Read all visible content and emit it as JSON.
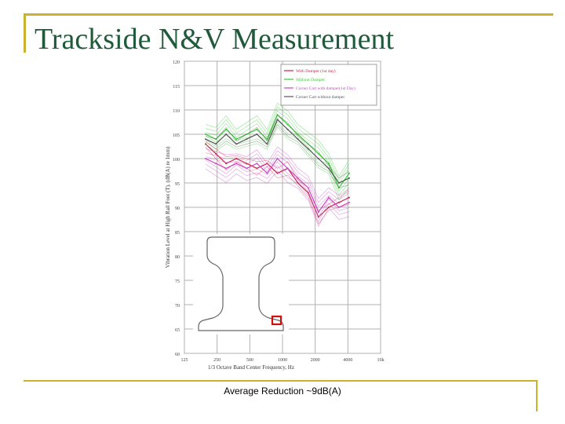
{
  "slide": {
    "title": "Trackside N&V Measurement",
    "caption": "Average Reduction ~9dB(A)",
    "accent_color": "#c9b32e",
    "title_color": "#1f5a3a"
  },
  "chart_data": {
    "type": "line",
    "xlabel": "1/3 Octave Band Center Frequency, Hz",
    "ylabel": "Vibration Level at High Rail Foot (T), (dB(A) re 1mm)",
    "x_ticks": [
      "125",
      "250",
      "500",
      "1000",
      "2000",
      "4000",
      "10k"
    ],
    "y_ticks": [
      60,
      65,
      70,
      75,
      80,
      85,
      90,
      95,
      100,
      105,
      110,
      115,
      120
    ],
    "ylim": [
      60,
      120
    ],
    "grid": true,
    "legend_position": "top-right",
    "categories": [
      "160",
      "200",
      "250",
      "315",
      "400",
      "500",
      "630",
      "800",
      "1000",
      "1250",
      "1600",
      "2000",
      "2500",
      "3150",
      "4000"
    ],
    "series": [
      {
        "name": "With Damper (1st day)",
        "color": "#cc2244",
        "values": [
          103,
          101,
          99,
          100,
          99,
          98,
          99,
          97,
          98,
          95,
          93,
          88,
          90,
          91,
          92
        ]
      },
      {
        "name": "Without Damper",
        "color": "#33cc33",
        "values": [
          105,
          104,
          106,
          104,
          105,
          106,
          104,
          109,
          107,
          105,
          103,
          101,
          99,
          94,
          97
        ]
      },
      {
        "name": "Corner Cart with damper(1st Day)",
        "color": "#cc44cc",
        "values": [
          100,
          99,
          98,
          99,
          98,
          99,
          97,
          100,
          98,
          96,
          94,
          89,
          92,
          90,
          91
        ]
      },
      {
        "name": "Corner Cart without damper",
        "color": "#555555",
        "values": [
          104,
          103,
          105,
          103,
          104,
          105,
          103,
          108,
          106,
          104,
          102,
          100,
          98,
          95,
          96
        ]
      }
    ]
  }
}
